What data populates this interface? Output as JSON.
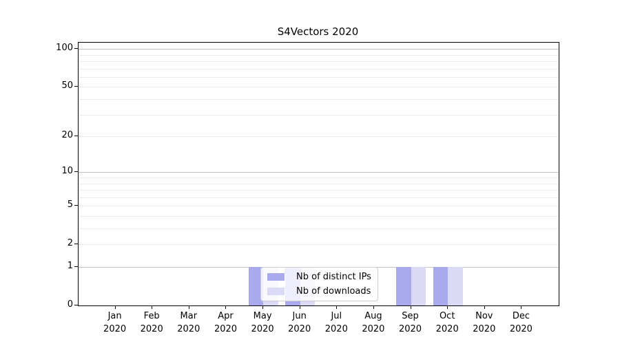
{
  "chart_data": {
    "type": "bar",
    "title": "S4Vectors 2020",
    "xlabel": "",
    "ylabel": "",
    "categories": [
      "Jan 2020",
      "Feb 2020",
      "Mar 2020",
      "Apr 2020",
      "May 2020",
      "Jun 2020",
      "Jul 2020",
      "Aug 2020",
      "Sep 2020",
      "Oct 2020",
      "Nov 2020",
      "Dec 2020"
    ],
    "x_tick_labels": [
      {
        "month": "Jan",
        "year": "2020"
      },
      {
        "month": "Feb",
        "year": "2020"
      },
      {
        "month": "Mar",
        "year": "2020"
      },
      {
        "month": "Apr",
        "year": "2020"
      },
      {
        "month": "May",
        "year": "2020"
      },
      {
        "month": "Jun",
        "year": "2020"
      },
      {
        "month": "Jul",
        "year": "2020"
      },
      {
        "month": "Aug",
        "year": "2020"
      },
      {
        "month": "Sep",
        "year": "2020"
      },
      {
        "month": "Oct",
        "year": "2020"
      },
      {
        "month": "Nov",
        "year": "2020"
      },
      {
        "month": "Dec",
        "year": "2020"
      }
    ],
    "series": [
      {
        "name": "Nb of distinct IPs",
        "color": "#a9a9ee",
        "values": [
          0,
          0,
          0,
          0,
          1,
          1,
          0,
          0,
          1,
          1,
          0,
          0
        ]
      },
      {
        "name": "Nb of downloads",
        "color": "#dadaf6",
        "values": [
          0,
          0,
          0,
          0,
          1,
          1,
          0,
          0,
          1,
          1,
          0,
          0
        ]
      }
    ],
    "yscale": "log1p",
    "ylim": [
      0,
      113
    ],
    "y_ticks": [
      100,
      50,
      20,
      10,
      5,
      2,
      1,
      0
    ],
    "grid": {
      "on": true,
      "minor_values": [
        2,
        3,
        4,
        5,
        6,
        7,
        8,
        9,
        20,
        30,
        40,
        50,
        60,
        70,
        80,
        90
      ],
      "major_values": [
        1,
        10,
        100
      ],
      "minor_color": "#ebebeb",
      "major_color": "#c0c0c0"
    },
    "legend": {
      "position": "inside lower-center-left",
      "entries": [
        "Nb of distinct IPs",
        "Nb of downloads"
      ]
    },
    "axis_color": "#000000",
    "background_color": "#ffffff"
  }
}
